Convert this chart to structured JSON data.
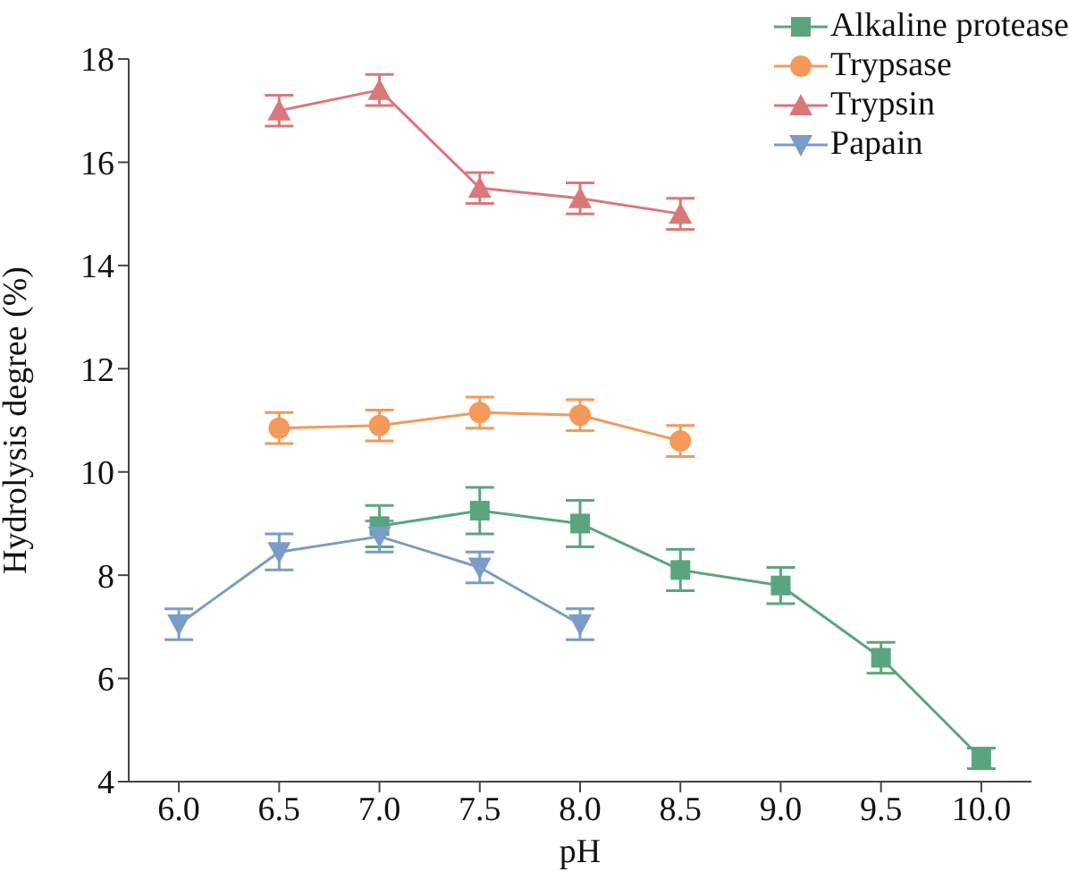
{
  "chart_data": {
    "type": "line",
    "xlabel": "pH",
    "ylabel": "Hydrolysis degree (%)",
    "xlim": [
      5.75,
      10.25
    ],
    "xticks": [
      {
        "value": 6,
        "label": "6.0"
      },
      {
        "value": 6.5,
        "label": "6.5"
      },
      {
        "value": 7,
        "label": "7.0"
      },
      {
        "value": 7.5,
        "label": "7.5"
      },
      {
        "value": 8,
        "label": "8.0"
      },
      {
        "value": 8.5,
        "label": "8.5"
      },
      {
        "value": 9,
        "label": "9.0"
      },
      {
        "value": 9.5,
        "label": "9.5"
      },
      {
        "value": 10,
        "label": "10.0"
      }
    ],
    "ylim": [
      4,
      18
    ],
    "yticks": [
      4,
      6,
      8,
      10,
      12,
      14,
      16,
      18
    ],
    "grid": false,
    "legend": "top right",
    "line_style": "solid",
    "series": [
      {
        "name": "Alkaline protease",
        "color": "#5aa57f",
        "marker": "square",
        "x": [
          7,
          7.5,
          8,
          8.5,
          9,
          9.5,
          10
        ],
        "values": [
          8.95,
          9.25,
          9.0,
          8.1,
          7.8,
          6.4,
          4.45
        ],
        "errors": [
          0.4,
          0.45,
          0.45,
          0.4,
          0.35,
          0.3,
          0.2
        ]
      },
      {
        "name": "Trypsase",
        "color": "#f39a5a",
        "marker": "circle",
        "x": [
          6.5,
          7,
          7.5,
          8,
          8.5
        ],
        "values": [
          10.85,
          10.9,
          11.15,
          11.1,
          10.6
        ],
        "errors": [
          0.3,
          0.3,
          0.3,
          0.3,
          0.3
        ]
      },
      {
        "name": "Trypsin",
        "color": "#d9787a",
        "marker": "triangle",
        "x": [
          6.5,
          7,
          7.5,
          8,
          8.5
        ],
        "values": [
          17.0,
          17.4,
          15.5,
          15.3,
          15.0
        ],
        "errors": [
          0.3,
          0.3,
          0.3,
          0.3,
          0.3
        ]
      },
      {
        "name": "Papain",
        "color": "#7a9cc6",
        "marker": "triangle-down",
        "x": [
          6,
          6.5,
          7,
          7.5,
          8
        ],
        "values": [
          7.05,
          8.45,
          8.75,
          8.15,
          7.05
        ],
        "errors": [
          0.3,
          0.35,
          0.3,
          0.3,
          0.3
        ]
      }
    ]
  }
}
